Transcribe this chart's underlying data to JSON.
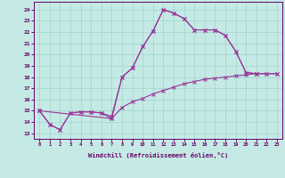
{
  "background_color": "#c5eae5",
  "grid_color": "#9fd4cc",
  "line_color": "#993399",
  "xlabel": "Windchill (Refroidissement éolien,°C)",
  "xlim": [
    -0.5,
    23.5
  ],
  "ylim": [
    12.5,
    24.7
  ],
  "yticks": [
    13,
    14,
    15,
    16,
    17,
    18,
    19,
    20,
    21,
    22,
    23,
    24
  ],
  "xticks": [
    0,
    1,
    2,
    3,
    4,
    5,
    6,
    7,
    8,
    9,
    10,
    11,
    12,
    13,
    14,
    15,
    16,
    17,
    18,
    19,
    20,
    21,
    22,
    23
  ],
  "line1_x": [
    0,
    1,
    2,
    3,
    4,
    5,
    6,
    7,
    8,
    9,
    10,
    11,
    12,
    13,
    14,
    15,
    16,
    17,
    18,
    19,
    20,
    21
  ],
  "line1_y": [
    15.0,
    13.8,
    13.3,
    14.8,
    14.9,
    14.9,
    14.8,
    14.5,
    18.0,
    18.8,
    20.7,
    22.1,
    24.0,
    23.7,
    23.2,
    22.2,
    22.2,
    22.2,
    21.7,
    20.3,
    18.4,
    18.3
  ],
  "line2_x": [
    0,
    1,
    2,
    3,
    4,
    5,
    6,
    7,
    8,
    9,
    10,
    11,
    12,
    13,
    14,
    15,
    16,
    17,
    18,
    19,
    20,
    21,
    22,
    23
  ],
  "line2_y": [
    15.0,
    13.8,
    13.3,
    14.8,
    14.9,
    14.9,
    14.8,
    14.3,
    15.3,
    15.8,
    16.1,
    16.5,
    16.8,
    17.1,
    17.4,
    17.6,
    17.8,
    17.9,
    18.0,
    18.1,
    18.2,
    18.3,
    18.3,
    18.3
  ],
  "line3_x": [
    0,
    7,
    8,
    9,
    10,
    11,
    12,
    13,
    14,
    15,
    16,
    17,
    18,
    19,
    20,
    21,
    22,
    23
  ],
  "line3_y": [
    15.0,
    14.3,
    18.0,
    18.8,
    20.7,
    22.1,
    24.0,
    23.7,
    23.2,
    22.2,
    22.2,
    22.2,
    21.7,
    20.3,
    18.4,
    18.3,
    18.3,
    18.3
  ]
}
